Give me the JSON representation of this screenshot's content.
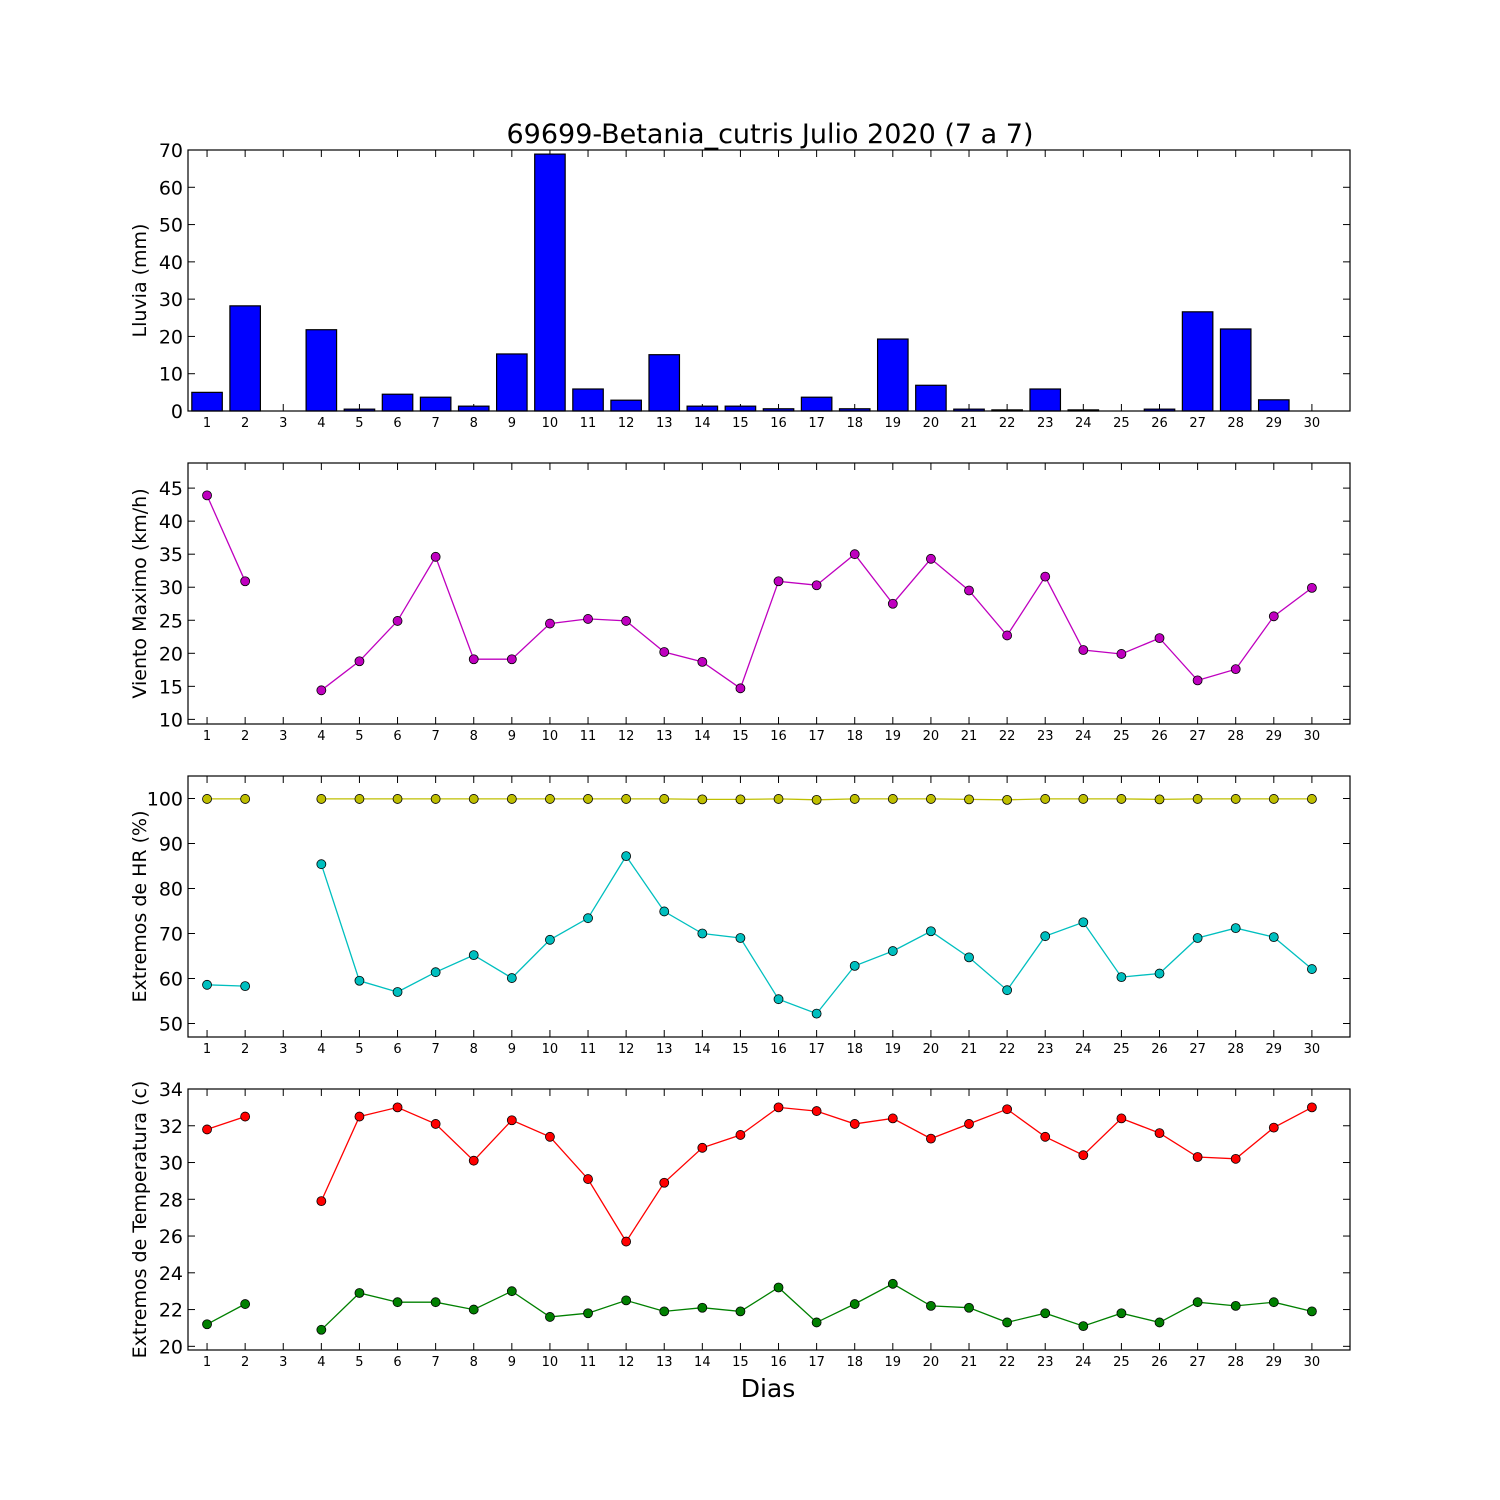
{
  "figure": {
    "title": "69699-Betania_cutris Julio 2020  (7 a 7)",
    "xlabel": "Dias"
  },
  "chart_data": [
    {
      "type": "bar",
      "ylabel": "Lluvia (mm)",
      "ylim": [
        0,
        70
      ],
      "yticks": [
        0,
        10,
        20,
        30,
        40,
        50,
        60,
        70
      ],
      "x": [
        1,
        2,
        3,
        4,
        5,
        6,
        7,
        8,
        9,
        10,
        11,
        12,
        13,
        14,
        15,
        16,
        17,
        18,
        19,
        20,
        21,
        22,
        23,
        24,
        25,
        26,
        27,
        28,
        29,
        30
      ],
      "series": [
        {
          "color": "#0000ff",
          "values": [
            5.0,
            28.2,
            null,
            21.8,
            0.5,
            4.5,
            3.7,
            1.3,
            15.3,
            68.9,
            5.9,
            2.9,
            15.1,
            1.3,
            1.3,
            0.6,
            3.7,
            0.6,
            19.3,
            6.9,
            0.5,
            0.3,
            5.9,
            0.3,
            0.0,
            0.5,
            26.6,
            22.0,
            3.0,
            0.0
          ]
        }
      ]
    },
    {
      "type": "line",
      "ylabel": "Viento Maximo (km/h)",
      "ylim": [
        9.3,
        48.8
      ],
      "yticks": [
        10,
        15,
        20,
        25,
        30,
        35,
        40,
        45
      ],
      "x": [
        1,
        2,
        3,
        4,
        5,
        6,
        7,
        8,
        9,
        10,
        11,
        12,
        13,
        14,
        15,
        16,
        17,
        18,
        19,
        20,
        21,
        22,
        23,
        24,
        25,
        26,
        27,
        28,
        29,
        30
      ],
      "series": [
        {
          "color": "#bf00bf",
          "values": [
            43.9,
            30.9,
            null,
            14.4,
            18.8,
            24.9,
            34.6,
            19.1,
            19.1,
            24.5,
            25.2,
            24.9,
            20.2,
            18.7,
            14.7,
            30.9,
            30.3,
            35.0,
            27.5,
            34.3,
            29.5,
            22.7,
            31.6,
            20.5,
            19.9,
            22.3,
            15.9,
            17.6,
            25.6,
            29.9
          ]
        }
      ]
    },
    {
      "type": "line",
      "ylabel": "Extremos de HR (%)",
      "ylim": [
        47,
        105
      ],
      "yticks": [
        50,
        60,
        70,
        80,
        90,
        100
      ],
      "x": [
        1,
        2,
        3,
        4,
        5,
        6,
        7,
        8,
        9,
        10,
        11,
        12,
        13,
        14,
        15,
        16,
        17,
        18,
        19,
        20,
        21,
        22,
        23,
        24,
        25,
        26,
        27,
        28,
        29,
        30
      ],
      "series": [
        {
          "color": "#bfbf00",
          "values": [
            99.9,
            99.9,
            null,
            99.9,
            99.9,
            99.9,
            99.9,
            99.9,
            99.9,
            99.9,
            99.9,
            99.9,
            99.9,
            99.8,
            99.8,
            99.9,
            99.7,
            99.9,
            99.9,
            99.9,
            99.8,
            99.7,
            99.9,
            99.9,
            99.9,
            99.8,
            99.9,
            99.9,
            99.9,
            99.9
          ]
        },
        {
          "color": "#00bfbf",
          "values": [
            58.6,
            58.3,
            null,
            85.4,
            59.5,
            57.0,
            61.4,
            65.2,
            60.1,
            68.6,
            73.4,
            87.2,
            74.9,
            70.0,
            69.0,
            55.4,
            52.2,
            62.8,
            66.1,
            70.5,
            64.7,
            57.4,
            69.4,
            72.5,
            60.3,
            61.1,
            69.0,
            71.2,
            69.2,
            62.1
          ]
        }
      ]
    },
    {
      "type": "line",
      "ylabel": "Extremos de Temperatura (c)",
      "ylim": [
        19.8,
        34
      ],
      "yticks": [
        20,
        22,
        24,
        26,
        28,
        30,
        32,
        34
      ],
      "x": [
        1,
        2,
        3,
        4,
        5,
        6,
        7,
        8,
        9,
        10,
        11,
        12,
        13,
        14,
        15,
        16,
        17,
        18,
        19,
        20,
        21,
        22,
        23,
        24,
        25,
        26,
        27,
        28,
        29,
        30
      ],
      "series": [
        {
          "color": "#ff0000",
          "values": [
            31.8,
            32.5,
            null,
            27.9,
            32.5,
            33.0,
            32.1,
            30.1,
            32.3,
            31.4,
            29.1,
            25.7,
            28.9,
            30.8,
            31.5,
            33.0,
            32.8,
            32.1,
            32.4,
            31.3,
            32.1,
            32.9,
            31.4,
            30.4,
            32.4,
            31.6,
            30.3,
            30.2,
            31.9,
            33.0
          ]
        },
        {
          "color": "#008000",
          "values": [
            21.2,
            22.3,
            null,
            20.9,
            22.9,
            22.4,
            22.4,
            22.0,
            23.0,
            21.6,
            21.8,
            22.5,
            21.9,
            22.1,
            21.9,
            23.2,
            21.3,
            22.3,
            23.4,
            22.2,
            22.1,
            21.3,
            21.8,
            21.1,
            21.8,
            21.3,
            22.4,
            22.2,
            22.4,
            21.9
          ]
        }
      ]
    }
  ]
}
